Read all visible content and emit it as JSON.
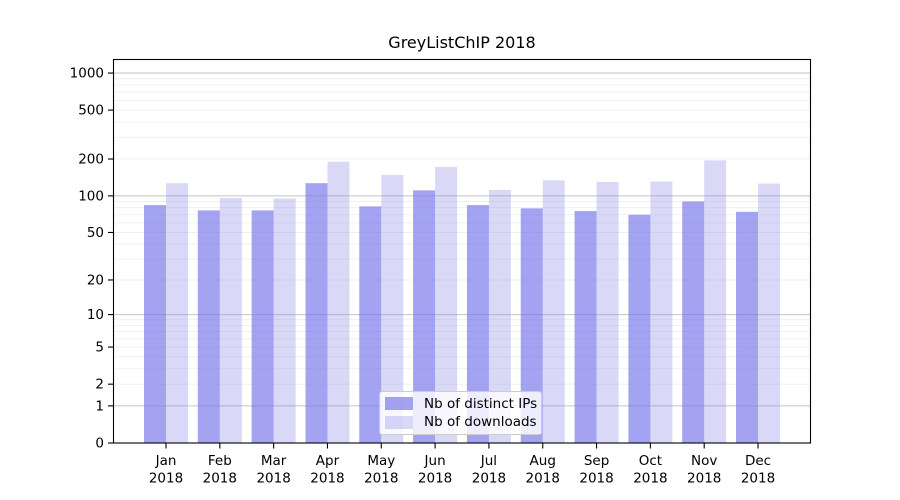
{
  "chart_data": {
    "type": "bar",
    "title": "GreyListChIP 2018",
    "y_scale": "log10(1+x)",
    "categories": [
      "Jan",
      "Feb",
      "Mar",
      "Apr",
      "May",
      "Jun",
      "Jul",
      "Aug",
      "Sep",
      "Oct",
      "Nov",
      "Dec"
    ],
    "x_tick_second_line": "2018",
    "series": [
      {
        "name": "Nb of distinct IPs",
        "color": "rgba(113,113,235,0.65)",
        "values": [
          84,
          76,
          76,
          127,
          82,
          111,
          84,
          79,
          75,
          70,
          90,
          74
        ]
      },
      {
        "name": "Nb of downloads",
        "color": "rgba(146,146,232,0.35)",
        "values": [
          127,
          96,
          95,
          190,
          148,
          172,
          112,
          134,
          130,
          131,
          195,
          126
        ]
      }
    ],
    "y_ticks": [
      0,
      1,
      2,
      5,
      10,
      20,
      50,
      100,
      200,
      500,
      1000
    ],
    "major_gridlines": [
      1,
      10,
      100,
      1000
    ],
    "ylim": [
      0,
      1270
    ],
    "grid": true,
    "legend_position": "lower center"
  },
  "colors": {
    "distinct_ips_bar": "#a3a3f2",
    "downloads_bar": "#d9d9f7",
    "major_gridline": "#c4c4c4",
    "minor_gridline": "#ededed",
    "axis": "#000000",
    "background": "#ffffff"
  }
}
